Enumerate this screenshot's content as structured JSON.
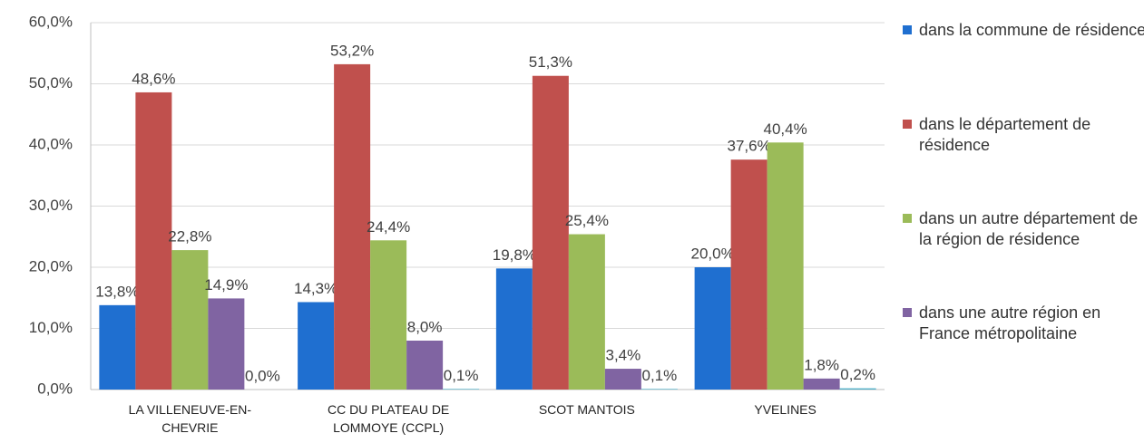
{
  "chart_data": {
    "type": "bar",
    "categories": [
      "LA VILLENEUVE-EN-CHEVRIE",
      "CC DU PLATEAU DE LOMMOYE (CCPL)",
      "SCOT MANTOIS",
      "YVELINES"
    ],
    "series": [
      {
        "name": "dans la commune de résidence",
        "color": "#1f6fd0",
        "values": [
          13.8,
          14.3,
          19.8,
          20.0
        ],
        "value_labels": [
          "13,8%",
          "14,3%",
          "19,8%",
          "20,0%"
        ]
      },
      {
        "name": "dans le département de résidence",
        "color": "#c0504d",
        "values": [
          48.6,
          53.2,
          51.3,
          37.6
        ],
        "value_labels": [
          "48,6%",
          "53,2%",
          "51,3%",
          "37,6%"
        ]
      },
      {
        "name": "dans un autre département de la région de résidence",
        "color": "#9bbb59",
        "values": [
          22.8,
          24.4,
          25.4,
          40.4
        ],
        "value_labels": [
          "22,8%",
          "24,4%",
          "25,4%",
          "40,4%"
        ]
      },
      {
        "name": "dans une autre région en France métropolitaine",
        "color": "#8064a2",
        "values": [
          14.9,
          8.0,
          3.4,
          1.8
        ],
        "value_labels": [
          "14,9%",
          "8,0%",
          "3,4%",
          "1,8%"
        ]
      },
      {
        "color": "#4bacc6",
        "values": [
          0.0,
          0.1,
          0.1,
          0.2
        ],
        "value_labels": [
          "0,0%",
          "0,1%",
          "0,1%",
          "0,2%"
        ]
      }
    ],
    "ylim": [
      0,
      60
    ],
    "yticks": [
      {
        "value": 0,
        "label": "0,0%"
      },
      {
        "value": 10,
        "label": "10,0%"
      },
      {
        "value": 20,
        "label": "20,0%"
      },
      {
        "value": 30,
        "label": "30,0%"
      },
      {
        "value": 40,
        "label": "40,0%"
      },
      {
        "value": 50,
        "label": "50,0%"
      },
      {
        "value": 60,
        "label": "60,0%"
      }
    ],
    "grid": true,
    "legend": "right"
  }
}
